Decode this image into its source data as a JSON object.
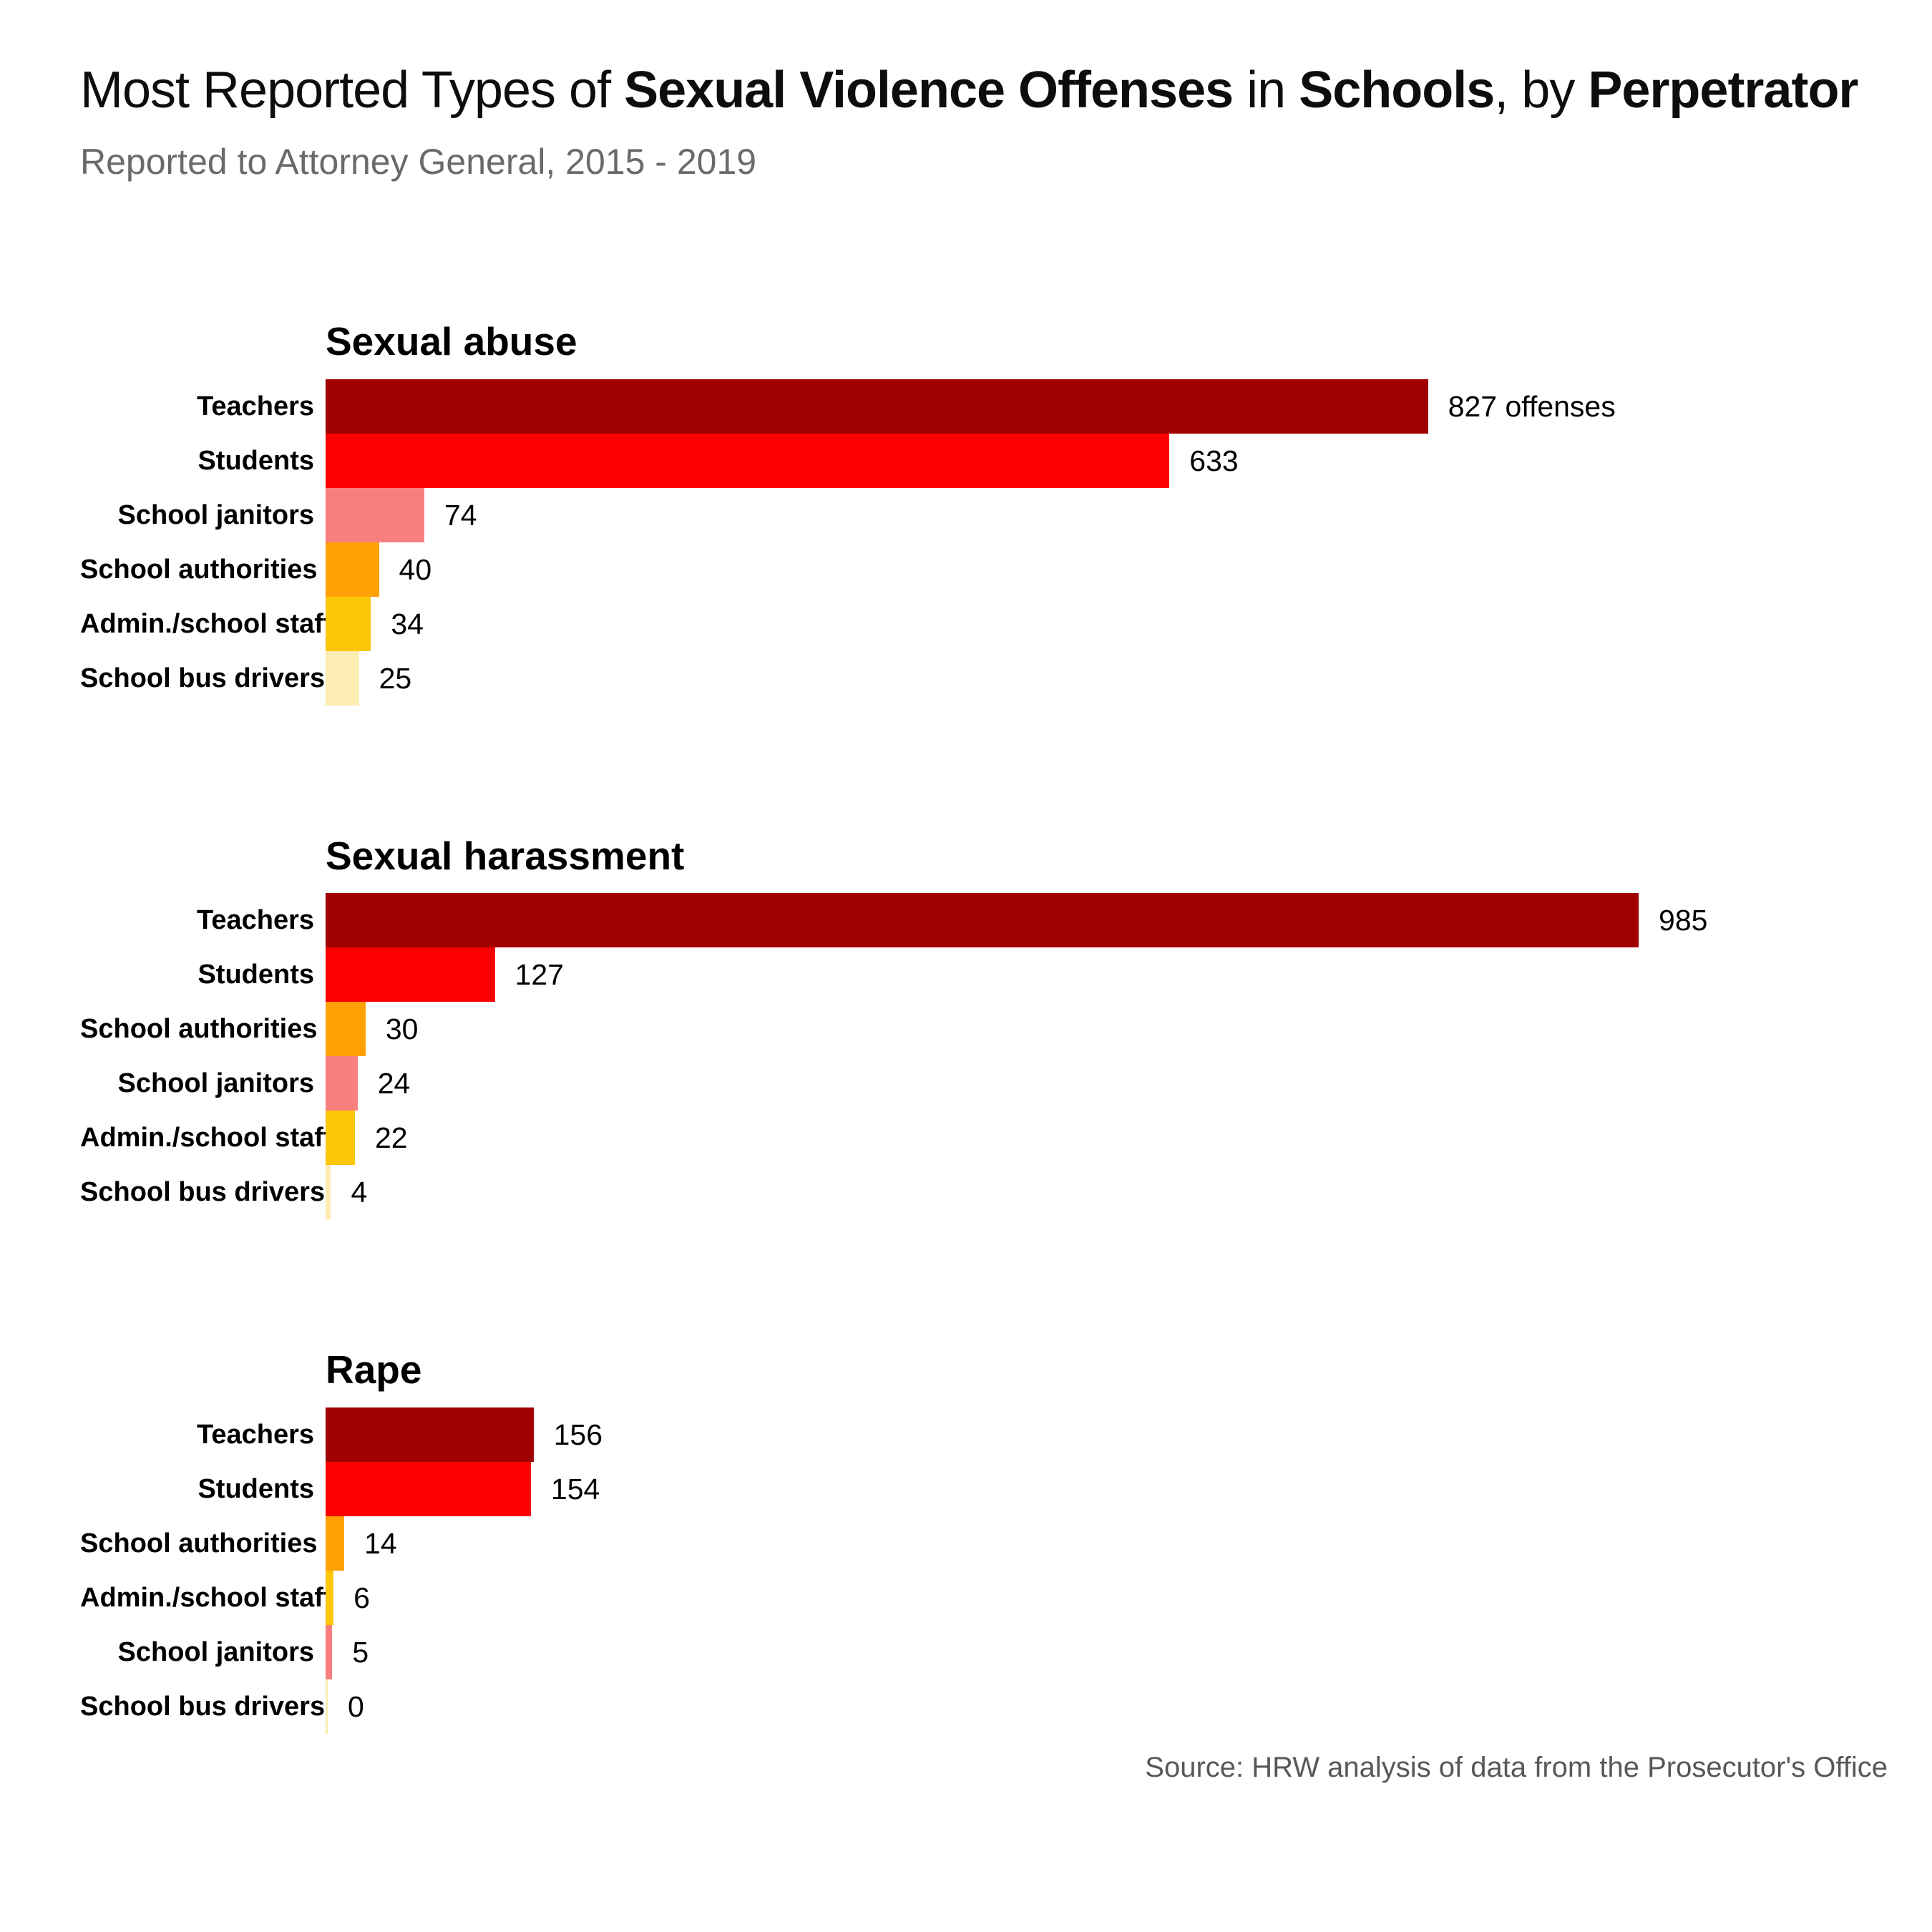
{
  "page": {
    "title_segments": [
      {
        "text": "Most Reported Types of ",
        "bold": false
      },
      {
        "text": "Sexual Violence Offenses",
        "bold": true
      },
      {
        "text": " in ",
        "bold": false
      },
      {
        "text": "Schools",
        "bold": true
      },
      {
        "text": ", by ",
        "bold": false
      },
      {
        "text": "Perpetrator",
        "bold": true
      }
    ],
    "subtitle": "Reported to Attorney General, 2015 - 2019",
    "source": "Source: HRW analysis of data from the Prosecutor's Office"
  },
  "colors": {
    "background": "#ffffff",
    "subtitle_gray": "#6a6a6a",
    "source_gray": "#58585a",
    "category_colors": {
      "Teachers": "#a00000",
      "Students": "#fa0000",
      "School janitors": "#f97f7f",
      "School authorities": "#ffa005",
      "Admin./school staff": "#fdc608",
      "School bus drivers": "#fbedb3"
    }
  },
  "chart_data": [
    {
      "type": "bar",
      "orientation": "horizontal",
      "title": "Sexual abuse",
      "categories": [
        "Teachers",
        "Students",
        "School janitors",
        "School authorities",
        "Admin./school staff",
        "School bus drivers"
      ],
      "values": [
        827,
        633,
        74,
        40,
        34,
        25
      ],
      "value_labels": [
        "827 offenses",
        "633",
        "74",
        "40",
        "34",
        "25"
      ],
      "xlim": [
        0,
        1185
      ],
      "grid": false,
      "legend": "none"
    },
    {
      "type": "bar",
      "orientation": "horizontal",
      "title": "Sexual harassment",
      "categories": [
        "Teachers",
        "Students",
        "School authorities",
        "School janitors",
        "Admin./school staff",
        "School bus drivers"
      ],
      "values": [
        985,
        127,
        30,
        24,
        22,
        4
      ],
      "value_labels": [
        "985",
        "127",
        "30",
        "24",
        "22",
        "4"
      ],
      "xlim": [
        0,
        1185
      ],
      "grid": false,
      "legend": "none"
    },
    {
      "type": "bar",
      "orientation": "horizontal",
      "title": "Rape",
      "categories": [
        "Teachers",
        "Students",
        "School authorities",
        "Admin./school staff",
        "School janitors",
        "School bus drivers"
      ],
      "values": [
        156,
        154,
        14,
        6,
        5,
        0
      ],
      "value_labels": [
        "156",
        "154",
        "14",
        "6",
        "5",
        "0"
      ],
      "xlim": [
        0,
        1185
      ],
      "grid": false,
      "legend": "none"
    }
  ]
}
